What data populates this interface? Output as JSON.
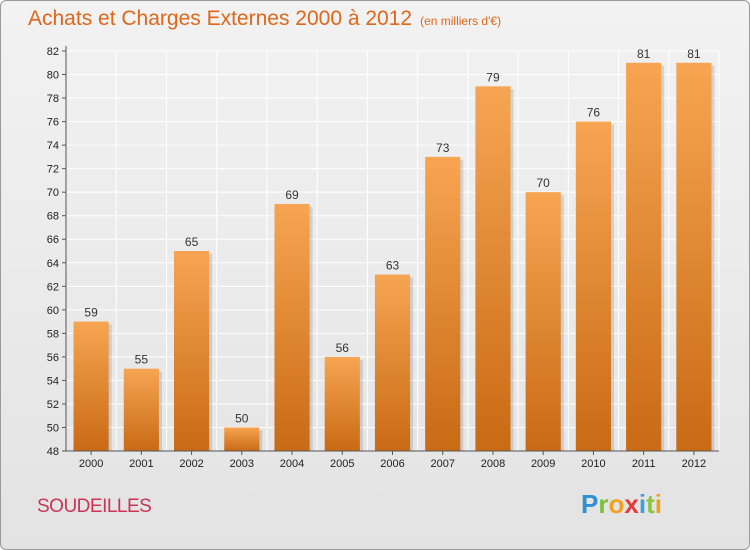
{
  "header": {
    "title": "Achats et Charges Externes 2000 à 2012",
    "subtitle": "(en milliers d'€)"
  },
  "footer": {
    "commune": "SOUDEILLES",
    "brand": "Proxiti"
  },
  "colors": {
    "bar_top": "#f7a552",
    "bar_bottom": "#c96a14",
    "title": "#e0661a",
    "commune": "#cc3355"
  },
  "chart_data": {
    "type": "bar",
    "title": "Achats et Charges Externes 2000 à 2012",
    "subtitle": "(en milliers d'€)",
    "xlabel": "",
    "ylabel": "",
    "categories": [
      "2000",
      "2001",
      "2002",
      "2003",
      "2004",
      "2005",
      "2006",
      "2007",
      "2008",
      "2009",
      "2010",
      "2011",
      "2012"
    ],
    "values": [
      59,
      55,
      65,
      50,
      69,
      56,
      63,
      73,
      79,
      70,
      76,
      81,
      81
    ],
    "ylim": [
      48,
      82
    ],
    "yticks": [
      48,
      50,
      52,
      54,
      56,
      58,
      60,
      62,
      64,
      66,
      68,
      70,
      72,
      74,
      76,
      78,
      80,
      82
    ],
    "grid": true,
    "legend": "none"
  }
}
